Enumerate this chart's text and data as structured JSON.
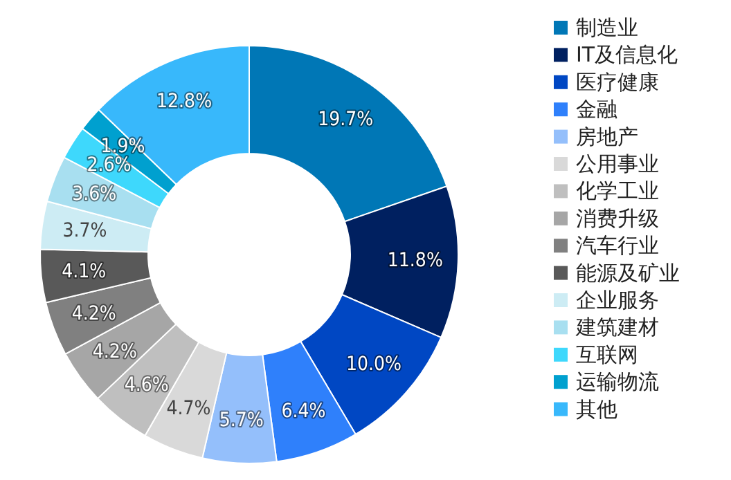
{
  "chart_data": {
    "type": "donut",
    "categories": [
      "制造业",
      "IT及信息化",
      "医疗健康",
      "金融",
      "房地产",
      "公用事业",
      "化学工业",
      "消费升级",
      "汽车行业",
      "能源及矿业",
      "企业服务",
      "建筑建材",
      "互联网",
      "运输物流",
      "其他"
    ],
    "values": [
      19.7,
      11.8,
      10.0,
      6.4,
      5.7,
      4.7,
      4.6,
      4.2,
      4.2,
      4.1,
      3.7,
      3.6,
      2.6,
      1.9,
      12.8
    ],
    "value_labels": [
      "19.7%",
      "11.8%",
      "10.0%",
      "6.4%",
      "5.7%",
      "4.7%",
      "4.6%",
      "4.2%",
      "4.2%",
      "4.1%",
      "3.7%",
      "3.6%",
      "2.6%",
      "1.9%",
      "12.8%"
    ],
    "colors": [
      "#0077b6",
      "#002060",
      "#0047c3",
      "#2f80fb",
      "#94bffb",
      "#d9d9d9",
      "#bfbfbf",
      "#a6a6a6",
      "#808080",
      "#595959",
      "#cdecf4",
      "#a8dff0",
      "#3ed8fc",
      "#00a0cf",
      "#38b8fb"
    ],
    "legend": "right"
  }
}
